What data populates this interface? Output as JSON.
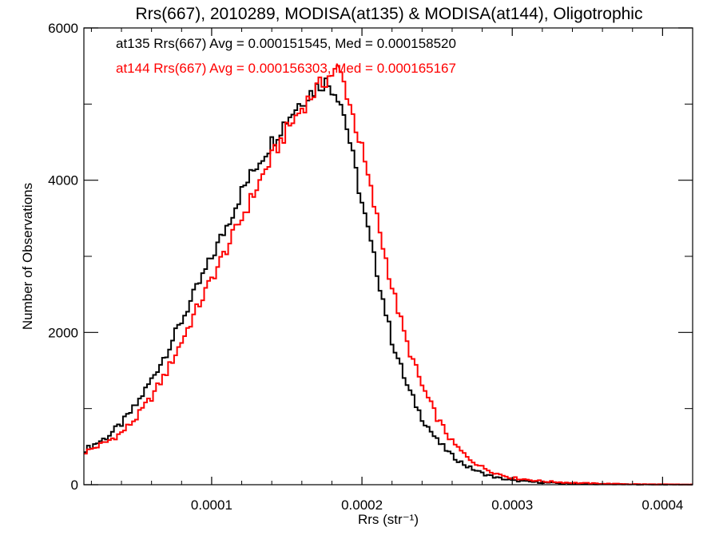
{
  "chart_data": {
    "type": "histogram",
    "title": "Rrs(667), 2010289, MODISA(at135) & MODISA(at144), Oligotrophic",
    "xlabel": "Rrs (str⁻¹)",
    "ylabel": "Number of Observations",
    "xlim": [
      1.5e-05,
      0.00042
    ],
    "ylim": [
      0,
      6000
    ],
    "x_ticks": [
      {
        "value": 0.0001,
        "label": "0.0001"
      },
      {
        "value": 0.0002,
        "label": "0.0002"
      },
      {
        "value": 0.0003,
        "label": "0.0003"
      },
      {
        "value": 0.0004,
        "label": "0.0004"
      }
    ],
    "y_ticks": [
      {
        "value": 0,
        "label": "0"
      },
      {
        "value": 2000,
        "label": "2000"
      },
      {
        "value": 4000,
        "label": "4000"
      },
      {
        "value": 6000,
        "label": "6000"
      }
    ],
    "x_minor_step": 2e-05,
    "y_minor_step": 1000,
    "grid": false,
    "legend_placement": "top-left",
    "bin_width": 2e-06,
    "series": [
      {
        "name": "at135",
        "legend": "at135 Rrs(667) Avg = 0.000151545, Med = 0.000158520",
        "color": "#000000",
        "points": [
          [
            1.5e-05,
            450
          ],
          [
            3e-05,
            620
          ],
          [
            4e-05,
            800
          ],
          [
            5e-05,
            1050
          ],
          [
            6e-05,
            1380
          ],
          [
            7e-05,
            1740
          ],
          [
            8e-05,
            2150
          ],
          [
            9e-05,
            2570
          ],
          [
            0.0001,
            2980
          ],
          [
            0.00011,
            3400
          ],
          [
            0.00012,
            3850
          ],
          [
            0.00013,
            4200
          ],
          [
            0.00014,
            4500
          ],
          [
            0.00015,
            4800
          ],
          [
            0.00016,
            5050
          ],
          [
            0.00017,
            5220
          ],
          [
            0.000175,
            5300
          ],
          [
            0.00018,
            5220
          ],
          [
            0.000185,
            5100
          ],
          [
            0.00019,
            4700
          ],
          [
            0.0002,
            3700
          ],
          [
            0.00021,
            2800
          ],
          [
            0.00022,
            1900
          ],
          [
            0.00023,
            1300
          ],
          [
            0.00024,
            880
          ],
          [
            0.00025,
            580
          ],
          [
            0.00026,
            380
          ],
          [
            0.00027,
            240
          ],
          [
            0.00028,
            150
          ],
          [
            0.00029,
            90
          ],
          [
            0.0003,
            55
          ],
          [
            0.00032,
            28
          ],
          [
            0.00034,
            14
          ],
          [
            0.00036,
            8
          ],
          [
            0.00038,
            4
          ],
          [
            0.0004,
            2
          ],
          [
            0.00042,
            1
          ]
        ]
      },
      {
        "name": "at144",
        "legend": "at144 Rrs(667) Avg = 0.000156303, Med = 0.000165167",
        "color": "#ff0000",
        "points": [
          [
            1.5e-05,
            420
          ],
          [
            3e-05,
            560
          ],
          [
            4e-05,
            680
          ],
          [
            5e-05,
            880
          ],
          [
            6e-05,
            1150
          ],
          [
            7e-05,
            1480
          ],
          [
            8e-05,
            1880
          ],
          [
            9e-05,
            2300
          ],
          [
            0.0001,
            2700
          ],
          [
            0.00011,
            3100
          ],
          [
            0.00012,
            3500
          ],
          [
            0.00013,
            3900
          ],
          [
            0.00014,
            4300
          ],
          [
            0.00015,
            4650
          ],
          [
            0.00016,
            4950
          ],
          [
            0.00017,
            5200
          ],
          [
            0.00018,
            5400
          ],
          [
            0.000185,
            5450
          ],
          [
            0.00019,
            5150
          ],
          [
            0.0002,
            4400
          ],
          [
            0.00021,
            3500
          ],
          [
            0.00022,
            2600
          ],
          [
            0.00023,
            1850
          ],
          [
            0.00024,
            1300
          ],
          [
            0.00025,
            880
          ],
          [
            0.00026,
            560
          ],
          [
            0.00027,
            360
          ],
          [
            0.00028,
            230
          ],
          [
            0.00029,
            145
          ],
          [
            0.0003,
            90
          ],
          [
            0.00032,
            45
          ],
          [
            0.00034,
            24
          ],
          [
            0.00036,
            13
          ],
          [
            0.00038,
            7
          ],
          [
            0.0004,
            4
          ],
          [
            0.00042,
            2
          ]
        ]
      }
    ]
  }
}
